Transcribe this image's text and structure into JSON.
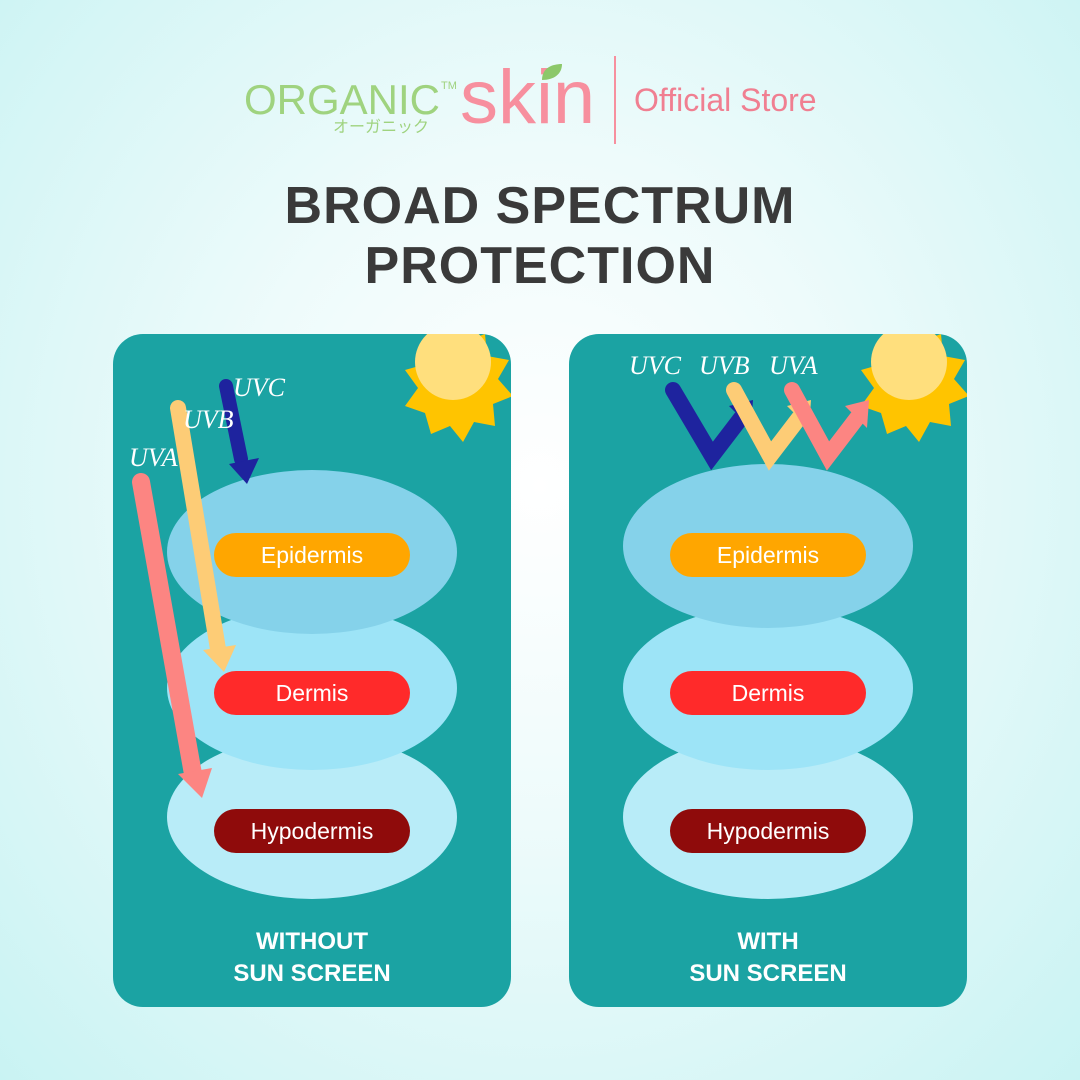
{
  "brand": {
    "organic": "ORGANIC",
    "tm": "TM",
    "kana": "オーガニック",
    "skin": "skin",
    "store": "Official Store",
    "colors": {
      "green": "#9fd37f",
      "pink": "#f78f9e"
    }
  },
  "title": {
    "line1": "BROAD SPECTRUM",
    "line2": "PROTECTION"
  },
  "colors": {
    "panel": "#1ba3a3",
    "epidermis": "#ffa600",
    "dermis": "#ff2a2a",
    "hypodermis": "#8f0b0b",
    "uvc": "#1e239e",
    "uvb": "#fdcc76",
    "uva": "#fc8582",
    "sun": "#ffc400"
  },
  "panels": [
    {
      "layers": [
        "Epidermis",
        "Dermis",
        "Hypodermis"
      ],
      "rays": [
        "UVC",
        "UVB",
        "UVA"
      ],
      "caption1": "WITHOUT",
      "caption2": "SUN SCREEN",
      "icon": "sun-icon"
    },
    {
      "layers": [
        "Epidermis",
        "Dermis",
        "Hypodermis"
      ],
      "rays": [
        "UVC",
        "UVB",
        "UVA"
      ],
      "caption1": "WITH",
      "caption2": "SUN SCREEN",
      "icon": "sun-icon"
    }
  ]
}
